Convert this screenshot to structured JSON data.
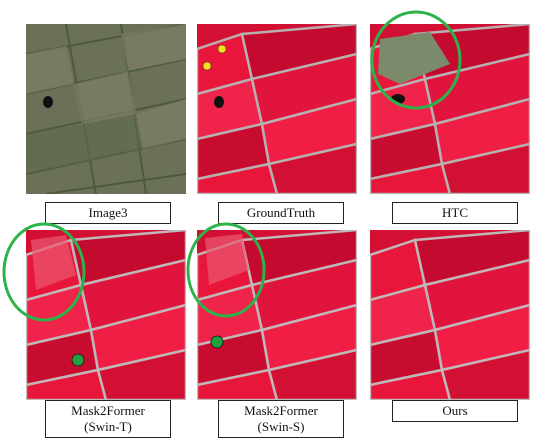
{
  "figure": {
    "panels": [
      {
        "id": "image3",
        "caption": "Image3"
      },
      {
        "id": "groundtruth",
        "caption": "GroundTruth"
      },
      {
        "id": "htc",
        "caption": "HTC"
      },
      {
        "id": "mask2former-t",
        "caption_line1": "Mask2Former",
        "caption_line2": "(Swin-T)"
      },
      {
        "id": "mask2former-s",
        "caption_line1": "Mask2Former",
        "caption_line2": "(Swin-S)"
      },
      {
        "id": "ours",
        "caption": "Ours"
      }
    ],
    "colors": {
      "highlight_circle": "#2cb34a",
      "error_marker": "#20a040",
      "gt_marker": "#f2e21a",
      "field_red": "#e8163a",
      "boundary": "#a0a4a0"
    }
  }
}
